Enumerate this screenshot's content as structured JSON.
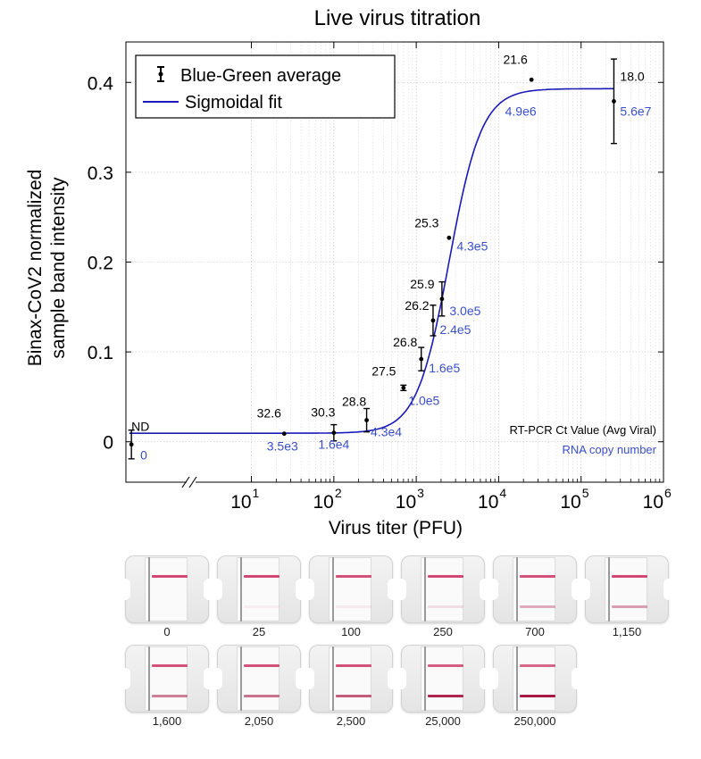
{
  "chart_data": {
    "type": "scatter",
    "title": "Live virus titration",
    "xlabel": "Virus titer (PFU)",
    "ylabel_line1": "Binax-CoV2 normalized",
    "ylabel_line2": "sample band intensity",
    "xscale": "log",
    "xlim": [
      0.3,
      1000000
    ],
    "ylim": [
      -0.045,
      0.445
    ],
    "xticks": [
      {
        "value": 10,
        "label": "10",
        "exp": "1"
      },
      {
        "value": 100,
        "label": "10",
        "exp": "2"
      },
      {
        "value": 1000,
        "label": "10",
        "exp": "3"
      },
      {
        "value": 10000,
        "label": "10",
        "exp": "4"
      },
      {
        "value": 100000,
        "label": "10",
        "exp": "5"
      },
      {
        "value": 1000000,
        "label": "10",
        "exp": "6"
      }
    ],
    "yticks": [
      {
        "value": 0,
        "label": "0"
      },
      {
        "value": 0.1,
        "label": "0.1"
      },
      {
        "value": 0.2,
        "label": "0.2"
      },
      {
        "value": 0.3,
        "label": "0.3"
      },
      {
        "value": 0.4,
        "label": "0.4"
      }
    ],
    "axis_break": true,
    "grid": true,
    "legend": {
      "placement": "top-left",
      "entries": [
        {
          "name": "Blue-Green average",
          "marker": "errorbar",
          "color": "#000000"
        },
        {
          "name": "Sigmoidal fit",
          "marker": "line",
          "color": "#1a1ab8"
        }
      ]
    },
    "series": [
      {
        "name": "Blue-Green average",
        "color": "#000000",
        "points": [
          {
            "x": 0.35,
            "y": -0.003,
            "err": 0.016,
            "ct": "ND",
            "rna": "0"
          },
          {
            "x": 25,
            "y": 0.009,
            "err": 0,
            "ct": "32.6",
            "rna": "3.5e3"
          },
          {
            "x": 100,
            "y": 0.01,
            "err": 0.009,
            "ct": "30.3",
            "rna": "1.6e4"
          },
          {
            "x": 250,
            "y": 0.024,
            "err": 0.013,
            "ct": "28.8",
            "rna": "4.3e4"
          },
          {
            "x": 700,
            "y": 0.06,
            "err": 0.003,
            "ct": "27.5",
            "rna": "1.0e5"
          },
          {
            "x": 1150,
            "y": 0.092,
            "err": 0.013,
            "ct": "26.8",
            "rna": "1.6e5"
          },
          {
            "x": 1600,
            "y": 0.135,
            "err": 0.017,
            "ct": "26.2",
            "rna": "2.4e5"
          },
          {
            "x": 2050,
            "y": 0.159,
            "err": 0.019,
            "ct": "25.9",
            "rna": "3.0e5"
          },
          {
            "x": 2500,
            "y": 0.227,
            "err": 0,
            "ct": "25.3",
            "rna": "4.3e5"
          },
          {
            "x": 25000,
            "y": 0.403,
            "err": 0,
            "ct": "21.6",
            "rna": "4.9e6"
          },
          {
            "x": 250000,
            "y": 0.379,
            "err": 0.047,
            "ct": "18.0",
            "rna": "5.6e7"
          }
        ]
      },
      {
        "name": "Sigmoidal fit",
        "color": "#1a1ab8",
        "fit": {
          "bottom": 0.0095,
          "top": 0.393,
          "log10_ec50": 3.4,
          "hill": 2.2
        }
      }
    ],
    "annotations": {
      "ct_caption": "RT-PCR Ct Value (Avg Viral)",
      "rna_caption": "RNA copy number",
      "ct_color": "#000000",
      "rna_color": "#3a4fc9"
    }
  },
  "strips": [
    {
      "label": "0",
      "control": 0.85,
      "test": 0
    },
    {
      "label": "25",
      "control": 0.85,
      "test": 0.05
    },
    {
      "label": "100",
      "control": 0.8,
      "test": 0.07
    },
    {
      "label": "250",
      "control": 0.85,
      "test": 0.12
    },
    {
      "label": "700",
      "control": 0.8,
      "test": 0.35
    },
    {
      "label": "1,150",
      "control": 0.85,
      "test": 0.4
    },
    {
      "label": "1,600",
      "control": 0.8,
      "test": 0.55
    },
    {
      "label": "2,050",
      "control": 0.8,
      "test": 0.6
    },
    {
      "label": "2,500",
      "control": 0.8,
      "test": 0.7
    },
    {
      "label": "25,000",
      "control": 0.75,
      "test": 0.95
    },
    {
      "label": "250,000",
      "control": 0.7,
      "test": 1.0
    }
  ]
}
